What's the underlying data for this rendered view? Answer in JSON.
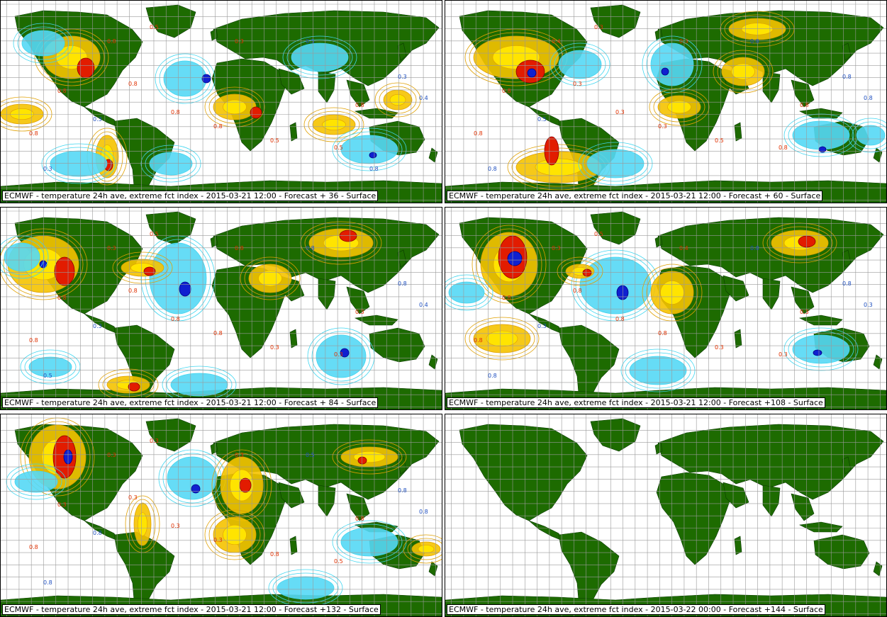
{
  "colors": {
    "land": "#1d6b00",
    "grid": "#9a9a9a",
    "warm_contour": "#e0a000",
    "warm_fill": "#f5c300",
    "warm_strong": "#ffe400",
    "hot": "#e21c00",
    "extreme_hot": "#8a0000",
    "cold_contour": "#3fd6f0",
    "cold_fill": "#55d8f5",
    "extreme_cold": "#1020d0",
    "label_warm": "#e03000",
    "label_cold": "#2050c0"
  },
  "panels": [
    {
      "id": "p1",
      "caption": "ECMWF - temperature 24h ave, extreme fct index - 2015-03-21 12:00 - Forecast + 36 - Surface",
      "contour_labels": [
        "0.8",
        "0.3",
        "0.8",
        "0.5",
        "0.5",
        "0.8",
        "0.8",
        "0.3",
        "0.5",
        "0.8",
        "0.4",
        "0.8",
        "0.5",
        "0.3",
        "0.8",
        "0.3",
        "0.8"
      ]
    },
    {
      "id": "p2",
      "caption": "ECMWF - temperature 24h ave, extreme fct index - 2015-03-21 12:00 - Forecast + 60 - Surface",
      "contour_labels": [
        "0.8",
        "0.5",
        "0.8",
        "0.3",
        "0.8",
        "0.8",
        "0.3",
        "0.8",
        "0.5",
        "0.3",
        "0.8",
        "0.3",
        "0.8",
        "0.8",
        "0.4",
        "0.3"
      ]
    },
    {
      "id": "p3",
      "caption": "ECMWF - temperature 24h ave, extreme fct index - 2015-03-21 12:00 - Forecast + 84 - Surface",
      "contour_labels": [
        "0.8",
        "0.3",
        "0.8",
        "0.5",
        "0.8",
        "0.3",
        "0.8",
        "0.8",
        "0.3",
        "0.8",
        "0.4",
        "0.8",
        "0.3",
        "0.5",
        "0.3",
        "0.8"
      ]
    },
    {
      "id": "p4",
      "caption": "ECMWF - temperature 24h ave, extreme fct index - 2015-03-21 12:00 - Forecast +108 - Surface",
      "contour_labels": [
        "0.8",
        "0.3",
        "0.8",
        "0.5",
        "0.8",
        "0.3",
        "0.8",
        "0.8",
        "0.3",
        "0.8",
        "0.3",
        "0.8",
        "0.3",
        "0.8",
        "0.3",
        "0.4"
      ]
    },
    {
      "id": "p5",
      "caption": "ECMWF - temperature 24h ave, extreme fct index - 2015-03-21 12:00 - Forecast +132 - Surface",
      "contour_labels": [
        "0.3",
        "0.8",
        "0.8",
        "0.3",
        "0.5",
        "0.8",
        "0.3",
        "0.8",
        "0.8",
        "0.3",
        "0.8",
        "0.3",
        "0.5",
        "0.8",
        "0.3",
        "0.3"
      ]
    },
    {
      "id": "p6",
      "caption": "ECMWF - temperature 24h ave, extreme fct index - 2015-03-22 00:00 - Forecast +144 - Surface",
      "contour_labels": []
    }
  ]
}
